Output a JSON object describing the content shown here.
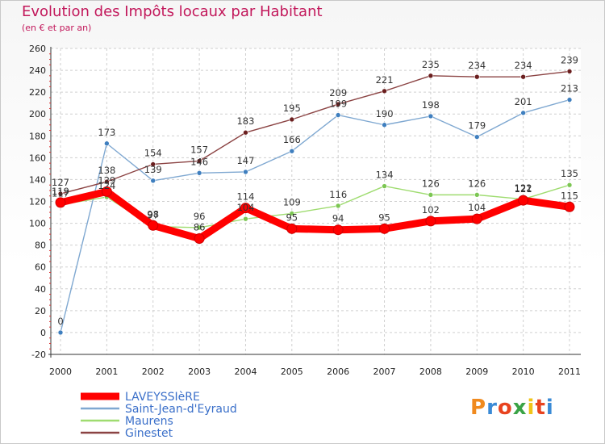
{
  "header": {
    "title": "Evolution des Impôts locaux par Habitant",
    "subtitle": "(en € et par an)"
  },
  "logo": {
    "text": "Proxiti",
    "colors": [
      "#f08a1e",
      "#3a8ad6",
      "#e8431f",
      "#3aa346",
      "#f0c419",
      "#e8431f",
      "#3a8ad6"
    ]
  },
  "chart_data": {
    "type": "line",
    "title": "Evolution des Impôts locaux par Habitant",
    "subtitle": "(en € et par an)",
    "xlabel": "",
    "ylabel": "",
    "x": [
      "2000",
      "2001",
      "2002",
      "2003",
      "2004",
      "2005",
      "2006",
      "2007",
      "2008",
      "2009",
      "2010",
      "2011"
    ],
    "ylim": [
      -20,
      260
    ],
    "yticks": [
      -20,
      0,
      20,
      40,
      60,
      80,
      100,
      120,
      140,
      160,
      180,
      200,
      220,
      240,
      260
    ],
    "grid": true,
    "legend_position": "bottom-left",
    "series": [
      {
        "name": "LAVEYSSIèRE",
        "color": "#ff0000",
        "width": 9,
        "values": [
          119,
          129,
          98,
          86,
          114,
          95,
          94,
          95,
          102,
          104,
          121,
          115
        ],
        "labels": [
          "119",
          "129",
          "98",
          "86",
          "114",
          "95",
          "94",
          "95",
          "102",
          "104",
          "121",
          "115"
        ]
      },
      {
        "name": "Saint-Jean-d'Eyraud",
        "color": "#7fa8d1",
        "width": 1.4,
        "values": [
          0,
          173,
          139,
          146,
          147,
          166,
          199,
          190,
          198,
          179,
          201,
          213
        ],
        "labels": [
          "0",
          "173",
          "139",
          "146",
          "147",
          "166",
          "199",
          "190",
          "198",
          "179",
          "201",
          "213"
        ]
      },
      {
        "name": "Maurens",
        "color": "#9fdc70",
        "width": 1.4,
        "values": [
          117,
          124,
          97,
          96,
          104,
          109,
          116,
          134,
          126,
          126,
          122,
          135
        ],
        "labels": [
          "117",
          "124",
          "97",
          "96",
          "104",
          "109",
          "116",
          "134",
          "126",
          "126",
          "122",
          "135"
        ]
      },
      {
        "name": "Ginestet",
        "color": "#8b4343",
        "width": 1.4,
        "values": [
          127,
          138,
          154,
          157,
          183,
          195,
          209,
          221,
          235,
          234,
          234,
          239
        ],
        "labels": [
          "127",
          "138",
          "154",
          "157",
          "183",
          "195",
          "209",
          "221",
          "235",
          "234",
          "234",
          "239"
        ]
      }
    ]
  }
}
